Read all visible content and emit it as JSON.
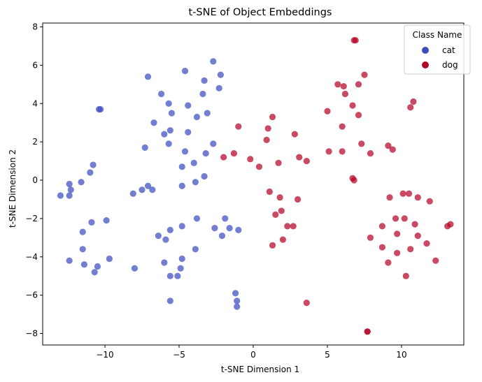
{
  "chart_data": {
    "type": "scatter",
    "title": "t-SNE of Object Embeddings",
    "xlabel": "t-SNE Dimension 1",
    "ylabel": "t-SNE Dimension 2",
    "xlim": [
      -14.2,
      14.2
    ],
    "ylim": [
      -8.6,
      8.2
    ],
    "xticks": [
      -10,
      -5,
      0,
      5,
      10
    ],
    "yticks": [
      -8,
      -6,
      -4,
      -2,
      0,
      2,
      4,
      6,
      8
    ],
    "grid": false,
    "legend": {
      "title": "Class Name",
      "placement": "top-right"
    },
    "series": [
      {
        "name": "cat",
        "color": "#3b4cc0",
        "points": [
          [
            -2.7,
            6.2
          ],
          [
            -4.6,
            5.7
          ],
          [
            -7.1,
            5.4
          ],
          [
            -3.3,
            5.2
          ],
          [
            -2.2,
            5.5
          ],
          [
            -3.4,
            4.5
          ],
          [
            -6.2,
            4.5
          ],
          [
            -2.3,
            4.8
          ],
          [
            -5.7,
            4.0
          ],
          [
            -4.4,
            3.9
          ],
          [
            -10.3,
            3.7
          ],
          [
            -10.4,
            3.7
          ],
          [
            -3.1,
            3.5
          ],
          [
            -3.8,
            3.3
          ],
          [
            -5.5,
            3.5
          ],
          [
            -6.7,
            3.0
          ],
          [
            -5.6,
            2.6
          ],
          [
            -6.0,
            2.4
          ],
          [
            -4.4,
            2.5
          ],
          [
            -5.7,
            1.9
          ],
          [
            -2.7,
            1.9
          ],
          [
            -7.3,
            1.7
          ],
          [
            -4.6,
            1.5
          ],
          [
            -3.2,
            1.4
          ],
          [
            -4.0,
            0.9
          ],
          [
            -4.8,
            0.7
          ],
          [
            -3.3,
            0.2
          ],
          [
            -3.9,
            -0.1
          ],
          [
            -10.8,
            0.8
          ],
          [
            -11.0,
            0.4
          ],
          [
            -12.4,
            -0.2
          ],
          [
            -11.6,
            -0.1
          ],
          [
            -12.3,
            -0.5
          ],
          [
            -4.8,
            -0.3
          ],
          [
            -7.1,
            -0.3
          ],
          [
            -6.8,
            -0.5
          ],
          [
            -7.5,
            -0.5
          ],
          [
            -13.0,
            -0.8
          ],
          [
            -12.4,
            -0.8
          ],
          [
            -8.1,
            -0.7
          ],
          [
            -3.8,
            -2.0
          ],
          [
            -1.9,
            -2.0
          ],
          [
            -9.9,
            -2.1
          ],
          [
            -10.9,
            -2.2
          ],
          [
            -4.8,
            -2.4
          ],
          [
            -2.6,
            -2.5
          ],
          [
            -1.6,
            -2.5
          ],
          [
            -1.0,
            -2.6
          ],
          [
            -11.5,
            -2.7
          ],
          [
            -5.6,
            -2.6
          ],
          [
            -6.4,
            -2.9
          ],
          [
            -2.1,
            -2.9
          ],
          [
            -5.9,
            -3.1
          ],
          [
            -11.5,
            -3.6
          ],
          [
            -3.9,
            -3.6
          ],
          [
            -12.4,
            -4.2
          ],
          [
            -9.7,
            -4.1
          ],
          [
            -4.8,
            -4.1
          ],
          [
            -11.4,
            -4.4
          ],
          [
            -6.0,
            -4.3
          ],
          [
            -10.5,
            -4.5
          ],
          [
            -8.0,
            -4.6
          ],
          [
            -4.9,
            -4.6
          ],
          [
            -10.7,
            -4.8
          ],
          [
            -5.1,
            -5.0
          ],
          [
            -5.6,
            -5.0
          ],
          [
            -5.6,
            -6.3
          ],
          [
            -1.2,
            -5.9
          ],
          [
            -1.1,
            -6.3
          ],
          [
            -1.1,
            -6.6
          ]
        ]
      },
      {
        "name": "dog",
        "color": "#b40426",
        "points": [
          [
            6.8,
            7.3
          ],
          [
            6.9,
            7.3
          ],
          [
            7.5,
            5.5
          ],
          [
            5.7,
            5.0
          ],
          [
            6.1,
            4.9
          ],
          [
            7.1,
            5.0
          ],
          [
            6.2,
            4.5
          ],
          [
            10.8,
            4.1
          ],
          [
            6.7,
            3.9
          ],
          [
            10.6,
            3.8
          ],
          [
            5.0,
            3.6
          ],
          [
            7.1,
            3.4
          ],
          [
            1.3,
            3.3
          ],
          [
            -1.0,
            2.8
          ],
          [
            6.0,
            2.8
          ],
          [
            1.0,
            2.7
          ],
          [
            2.8,
            2.4
          ],
          [
            0.9,
            2.1
          ],
          [
            7.3,
            1.9
          ],
          [
            9.1,
            1.8
          ],
          [
            9.4,
            1.6
          ],
          [
            5.1,
            1.5
          ],
          [
            6.0,
            1.5
          ],
          [
            7.9,
            1.4
          ],
          [
            -1.3,
            1.4
          ],
          [
            -2.0,
            1.2
          ],
          [
            3.1,
            1.2
          ],
          [
            -0.2,
            1.1
          ],
          [
            1.7,
            0.9
          ],
          [
            3.6,
            1.0
          ],
          [
            0.4,
            0.7
          ],
          [
            6.7,
            0.1
          ],
          [
            6.8,
            0.0
          ],
          [
            10.5,
            -0.7
          ],
          [
            10.1,
            -0.7
          ],
          [
            1.1,
            -0.6
          ],
          [
            11.1,
            -0.9
          ],
          [
            9.2,
            -0.9
          ],
          [
            1.8,
            -0.9
          ],
          [
            3.0,
            -1.0
          ],
          [
            11.9,
            -1.1
          ],
          [
            1.9,
            -1.6
          ],
          [
            1.5,
            -1.8
          ],
          [
            9.6,
            -2.0
          ],
          [
            10.2,
            -2.0
          ],
          [
            10.9,
            -2.3
          ],
          [
            13.1,
            -2.4
          ],
          [
            13.3,
            -2.3
          ],
          [
            8.7,
            -2.4
          ],
          [
            2.3,
            -2.4
          ],
          [
            2.7,
            -2.4
          ],
          [
            9.7,
            -2.8
          ],
          [
            11.1,
            -2.9
          ],
          [
            2.0,
            -3.1
          ],
          [
            7.9,
            -3.0
          ],
          [
            11.7,
            -3.3
          ],
          [
            1.3,
            -3.4
          ],
          [
            8.7,
            -3.5
          ],
          [
            10.6,
            -3.6
          ],
          [
            9.7,
            -3.8
          ],
          [
            12.3,
            -4.2
          ],
          [
            9.1,
            -4.3
          ],
          [
            10.3,
            -5.0
          ],
          [
            3.6,
            -6.4
          ],
          [
            7.7,
            -7.9
          ],
          [
            7.7,
            -7.9
          ]
        ]
      }
    ]
  }
}
